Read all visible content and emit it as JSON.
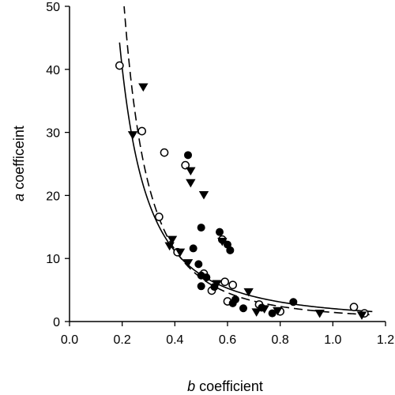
{
  "chart_data": {
    "type": "scatter",
    "title": "",
    "xlabel": {
      "var": "b",
      "rest": " coefficient"
    },
    "ylabel": {
      "var": "a",
      "rest": " coefficeint"
    },
    "xlim": [
      0,
      1.2
    ],
    "ylim": [
      0,
      50
    ],
    "x_ticks": [
      "0.0",
      "0.2",
      "0.4",
      "0.6",
      "0.8",
      "1.0",
      "1.2"
    ],
    "x_tick_values": [
      0,
      0.2,
      0.4,
      0.6,
      0.8,
      1.0,
      1.2
    ],
    "y_ticks": [
      "0",
      "10",
      "20",
      "30",
      "40",
      "50"
    ],
    "y_tick_values": [
      0,
      10,
      20,
      30,
      40,
      50
    ],
    "grid": false,
    "legend": false,
    "series": [
      {
        "marker": "open-circle",
        "color": "#000000",
        "points": [
          [
            0.19,
            40.6
          ],
          [
            0.275,
            30.2
          ],
          [
            0.36,
            26.8
          ],
          [
            0.44,
            24.8
          ],
          [
            0.34,
            16.6
          ],
          [
            0.41,
            11.0
          ],
          [
            0.58,
            13.0
          ],
          [
            0.62,
            5.8
          ],
          [
            0.6,
            3.2
          ],
          [
            0.54,
            4.9
          ],
          [
            0.59,
            6.3
          ],
          [
            0.72,
            2.7
          ],
          [
            0.8,
            1.6
          ],
          [
            0.51,
            7.6
          ],
          [
            1.08,
            2.3
          ],
          [
            1.12,
            1.3
          ]
        ]
      },
      {
        "marker": "filled-circle",
        "color": "#000000",
        "points": [
          [
            0.45,
            26.4
          ],
          [
            0.5,
            14.9
          ],
          [
            0.57,
            14.2
          ],
          [
            0.6,
            12.2
          ],
          [
            0.61,
            11.3
          ],
          [
            0.47,
            11.6
          ],
          [
            0.49,
            9.1
          ],
          [
            0.5,
            7.3
          ],
          [
            0.52,
            7.0
          ],
          [
            0.5,
            5.6
          ],
          [
            0.55,
            5.5
          ],
          [
            0.63,
            3.5
          ],
          [
            0.62,
            2.9
          ],
          [
            0.66,
            2.1
          ],
          [
            0.73,
            2.2
          ],
          [
            0.77,
            1.3
          ],
          [
            0.85,
            3.1
          ]
        ]
      },
      {
        "marker": "filled-triangle-down",
        "color": "#000000",
        "points": [
          [
            0.28,
            37.2
          ],
          [
            0.24,
            29.6
          ],
          [
            0.46,
            23.9
          ],
          [
            0.46,
            22.0
          ],
          [
            0.51,
            20.1
          ],
          [
            0.39,
            13.0
          ],
          [
            0.38,
            12.0
          ],
          [
            0.42,
            11.0
          ],
          [
            0.45,
            9.3
          ],
          [
            0.58,
            12.7
          ],
          [
            0.56,
            6.0
          ],
          [
            0.68,
            4.7
          ],
          [
            0.71,
            1.5
          ],
          [
            0.74,
            2.0
          ],
          [
            0.79,
            1.7
          ],
          [
            0.95,
            1.3
          ],
          [
            1.11,
            1.0
          ]
        ]
      }
    ],
    "curves": [
      {
        "style": "solid",
        "model": "a = c * b^k",
        "c": 2.05,
        "k": -1.85,
        "x_range": [
          0.19,
          1.15
        ]
      },
      {
        "style": "dashed",
        "model": "a = c * b^k",
        "c": 1.45,
        "k": -2.25,
        "x_range": [
          0.19,
          1.15
        ]
      }
    ]
  }
}
